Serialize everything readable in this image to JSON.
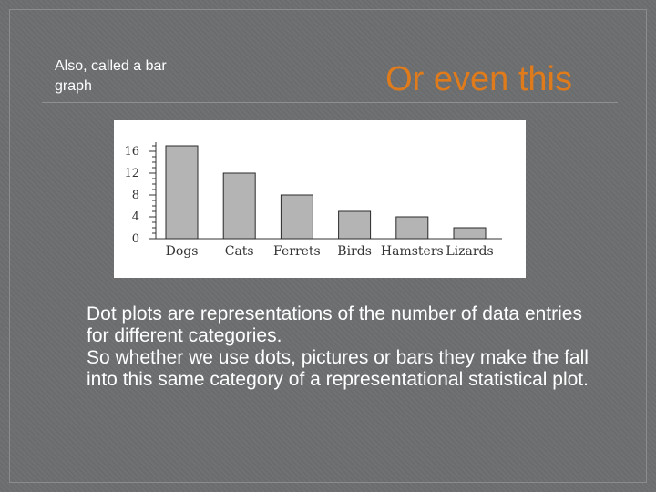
{
  "side_note": "Also, called a bar graph",
  "title": "Or even this",
  "body": {
    "line1": "Dot plots are representations of the number of data entries for different categories.",
    "line2": "So whether we use dots, pictures or bars they make the fall into this same category of a representational statistical plot."
  },
  "colors": {
    "title": "#e07b1b",
    "bar_fill": "#b4b4b4",
    "bar_stroke": "#2a2a2a"
  },
  "chart_data": {
    "type": "bar",
    "categories": [
      "Dogs",
      "Cats",
      "Ferrets",
      "Birds",
      "Hamsters",
      "Lizards"
    ],
    "values": [
      17,
      12,
      8,
      5,
      4,
      2
    ],
    "yticks": [
      0,
      4,
      8,
      12,
      16
    ],
    "ylim": [
      0,
      17
    ],
    "title": "",
    "xlabel": "",
    "ylabel": "",
    "grid": false
  }
}
